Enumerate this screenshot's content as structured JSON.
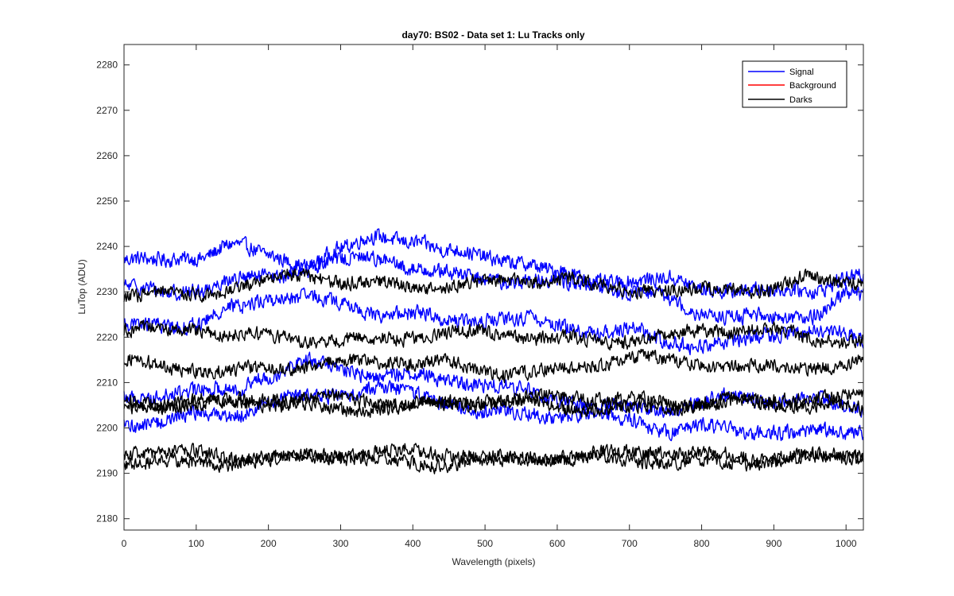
{
  "chart_data": {
    "type": "line",
    "title": "day70: BS02 - Data set 1: Lu Tracks only",
    "xlabel": "Wavelength (pixels)",
    "ylabel": "LuTop (ADU)",
    "xlim": [
      0,
      1024
    ],
    "ylim": [
      2177.5,
      2284.5
    ],
    "xticks": [
      0,
      100,
      200,
      300,
      400,
      500,
      600,
      700,
      800,
      900,
      1000
    ],
    "yticks": [
      2180,
      2190,
      2200,
      2210,
      2220,
      2230,
      2240,
      2250,
      2260,
      2270,
      2280
    ],
    "grid": false,
    "legend_position": "top-right",
    "legend": [
      {
        "label": "Signal",
        "color": "#0000ff"
      },
      {
        "label": "Background",
        "color": "#ff0000"
      },
      {
        "label": "Darks",
        "color": "#000000"
      }
    ],
    "series": [
      {
        "group": "Signal",
        "color": "#0000ff",
        "noise": 1.6,
        "x": [
          0,
          50,
          100,
          150,
          200,
          250,
          300,
          350,
          400,
          450,
          500,
          550,
          600,
          650,
          700,
          750,
          800,
          850,
          900,
          950,
          1000,
          1024
        ],
        "y": [
          2237,
          2236,
          2237,
          2240,
          2238,
          2237,
          2240,
          2242,
          2241,
          2238,
          2237,
          2237,
          2235,
          2233,
          2233,
          2232,
          2230,
          2230,
          2230,
          2231,
          2234,
          2234
        ]
      },
      {
        "group": "Signal",
        "color": "#0000ff",
        "noise": 1.6,
        "x": [
          0,
          50,
          100,
          150,
          200,
          250,
          300,
          350,
          400,
          450,
          500,
          550,
          600,
          650,
          700,
          750,
          800,
          850,
          900,
          950,
          1000,
          1024
        ],
        "y": [
          2230,
          2230,
          2231,
          2233,
          2234,
          2235,
          2236,
          2237,
          2235,
          2234,
          2234,
          2233,
          2232,
          2231,
          2229,
          2228,
          2226,
          2225,
          2225,
          2225,
          2229,
          2228
        ]
      },
      {
        "group": "Signal",
        "color": "#0000ff",
        "noise": 1.6,
        "x": [
          0,
          50,
          100,
          150,
          200,
          250,
          300,
          350,
          400,
          450,
          500,
          550,
          600,
          650,
          700,
          750,
          800,
          850,
          900,
          950,
          1000,
          1024
        ],
        "y": [
          2223,
          2224,
          2223,
          2226,
          2228,
          2228,
          2227,
          2226,
          2226,
          2224,
          2224,
          2223,
          2222,
          2221,
          2222,
          2220,
          2219,
          2219,
          2220,
          2221,
          2220,
          2219
        ]
      },
      {
        "group": "Signal",
        "color": "#0000ff",
        "noise": 1.6,
        "x": [
          0,
          50,
          100,
          150,
          200,
          250,
          300,
          350,
          400,
          450,
          500,
          550,
          600,
          650,
          700,
          750,
          800,
          850,
          900,
          950,
          1000,
          1024
        ],
        "y": [
          2207,
          2207,
          2207,
          2208,
          2212,
          2215,
          2214,
          2212,
          2211,
          2210,
          2209,
          2208,
          2207,
          2206,
          2205,
          2204,
          2205,
          2206,
          2206,
          2207,
          2205,
          2205
        ]
      },
      {
        "group": "Signal",
        "color": "#0000ff",
        "noise": 1.6,
        "x": [
          0,
          50,
          100,
          150,
          200,
          250,
          300,
          350,
          400,
          450,
          500,
          550,
          600,
          650,
          700,
          750,
          800,
          850,
          900,
          950,
          1000,
          1024
        ],
        "y": [
          2200,
          2201,
          2203,
          2204,
          2206,
          2207,
          2207,
          2208,
          2207,
          2206,
          2204,
          2204,
          2203,
          2202,
          2201,
          2199,
          2200,
          2200,
          2200,
          2199,
          2199,
          2199
        ]
      },
      {
        "group": "Darks",
        "color": "#000000",
        "noise": 1.5,
        "x": [
          0,
          50,
          100,
          150,
          200,
          250,
          300,
          350,
          400,
          450,
          500,
          550,
          600,
          650,
          700,
          750,
          800,
          850,
          900,
          950,
          1000,
          1024
        ],
        "y": [
          2230,
          2230,
          2230,
          2231,
          2232,
          2233,
          2232,
          2232,
          2232,
          2232,
          2232,
          2232,
          2232,
          2231,
          2231,
          2231,
          2231,
          2231,
          2230,
          2232,
          2232,
          2232
        ]
      },
      {
        "group": "Darks",
        "color": "#000000",
        "noise": 1.5,
        "x": [
          0,
          50,
          100,
          150,
          200,
          250,
          300,
          350,
          400,
          450,
          500,
          550,
          600,
          650,
          700,
          750,
          800,
          850,
          900,
          950,
          1000,
          1024
        ],
        "y": [
          2222,
          2221,
          2221,
          2220,
          2220,
          2220,
          2220,
          2220,
          2220,
          2220,
          2220,
          2220,
          2220,
          2220,
          2220,
          2220,
          2221,
          2221,
          2221,
          2220,
          2220,
          2220
        ]
      },
      {
        "group": "Darks",
        "color": "#000000",
        "noise": 1.5,
        "x": [
          0,
          50,
          100,
          150,
          200,
          250,
          300,
          350,
          400,
          450,
          500,
          550,
          600,
          650,
          700,
          750,
          800,
          850,
          900,
          950,
          1000,
          1024
        ],
        "y": [
          2214,
          2213,
          2213,
          2213,
          2214,
          2214,
          2214,
          2214,
          2214,
          2214,
          2213,
          2213,
          2213,
          2214,
          2215,
          2214,
          2214,
          2214,
          2214,
          2214,
          2214,
          2214
        ]
      },
      {
        "group": "Darks",
        "color": "#000000",
        "noise": 1.5,
        "x": [
          0,
          50,
          100,
          150,
          200,
          250,
          300,
          350,
          400,
          450,
          500,
          550,
          600,
          650,
          700,
          750,
          800,
          850,
          900,
          950,
          1000,
          1024
        ],
        "y": [
          2206,
          2206,
          2206,
          2206,
          2206,
          2206,
          2206,
          2206,
          2206,
          2206,
          2206,
          2206,
          2206,
          2206,
          2206,
          2206,
          2206,
          2206,
          2206,
          2206,
          2206,
          2206
        ]
      },
      {
        "group": "Darks",
        "color": "#000000",
        "noise": 1.5,
        "x": [
          0,
          50,
          100,
          150,
          200,
          250,
          300,
          350,
          400,
          450,
          500,
          550,
          600,
          650,
          700,
          750,
          800,
          850,
          900,
          950,
          1000,
          1024
        ],
        "y": [
          2205,
          2205,
          2205,
          2205,
          2205,
          2205,
          2205,
          2205,
          2205,
          2205,
          2205,
          2205,
          2205,
          2205,
          2205,
          2205,
          2205,
          2205,
          2205,
          2205,
          2205,
          2205
        ]
      },
      {
        "group": "Darks",
        "color": "#000000",
        "noise": 1.5,
        "x": [
          0,
          50,
          100,
          150,
          200,
          250,
          300,
          350,
          400,
          450,
          500,
          550,
          600,
          650,
          700,
          750,
          800,
          850,
          900,
          950,
          1000,
          1024
        ],
        "y": [
          2194,
          2194,
          2194,
          2194,
          2194,
          2194,
          2194,
          2194,
          2194,
          2194,
          2194,
          2194,
          2194,
          2194,
          2194,
          2194,
          2194,
          2194,
          2194,
          2194,
          2194,
          2194
        ]
      },
      {
        "group": "Darks",
        "color": "#000000",
        "noise": 1.5,
        "x": [
          0,
          50,
          100,
          150,
          200,
          250,
          300,
          350,
          400,
          450,
          500,
          550,
          600,
          650,
          700,
          750,
          800,
          850,
          900,
          950,
          1000,
          1024
        ],
        "y": [
          2193,
          2193,
          2193,
          2193,
          2193,
          2193,
          2193,
          2193,
          2193,
          2193,
          2193,
          2193,
          2193,
          2193,
          2193,
          2193,
          2193,
          2193,
          2193,
          2193,
          2193,
          2193
        ]
      }
    ]
  }
}
